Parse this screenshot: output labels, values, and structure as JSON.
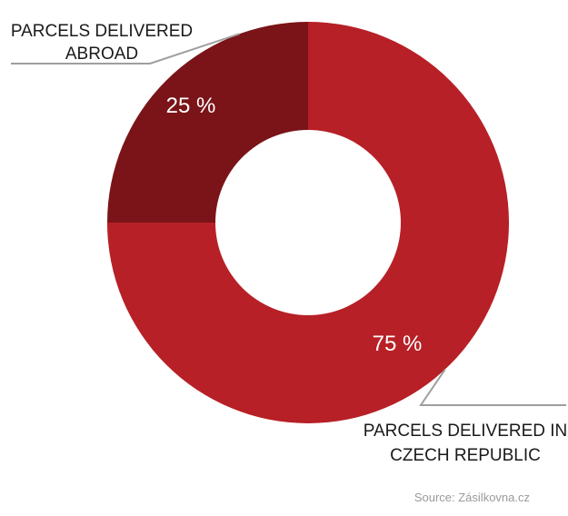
{
  "chart_data": {
    "type": "pie",
    "title": "",
    "slices": [
      {
        "label_lines": [
          "PARCELS DELIVERED IN",
          "CZECH REPUBLIC"
        ],
        "value": 75,
        "value_label": "75 %",
        "color": "#b72026"
      },
      {
        "label_lines": [
          "PARCELS DELIVERED",
          "ABROAD"
        ],
        "value": 25,
        "value_label": "25 %",
        "color": "#7a1418"
      }
    ],
    "donut": true,
    "legend": "none"
  },
  "source": "Source: Zásilkovna.cz",
  "colors": {
    "background": "#ffffff",
    "callout_line": "#9e9e9e",
    "text": "#1a1a1a",
    "source_text": "#9a9a9a"
  }
}
